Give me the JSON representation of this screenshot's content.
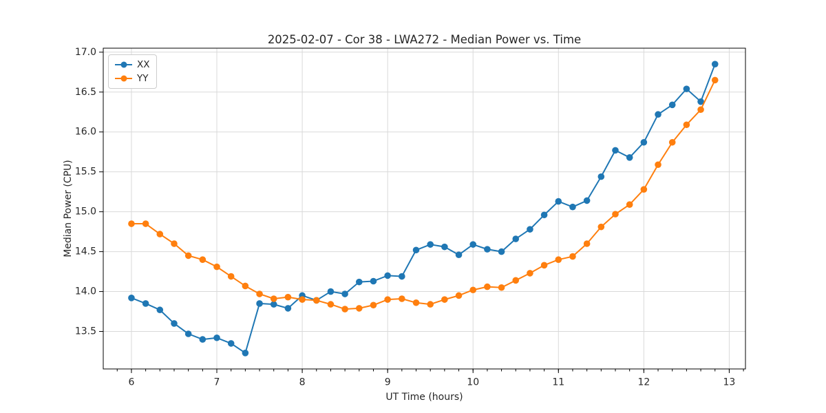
{
  "chart_data": {
    "type": "line",
    "title": "2025-02-07 - Cor 38 - LWA272 - Median Power vs. Time",
    "xlabel": "UT Time (hours)",
    "ylabel": "Median Power (CPU)",
    "xlim": [
      5.67,
      13.19
    ],
    "ylim": [
      13.03,
      17.05
    ],
    "xticks": [
      6,
      7,
      8,
      9,
      10,
      11,
      12,
      13
    ],
    "xtick_labels": [
      "6",
      "7",
      "8",
      "9",
      "10",
      "11",
      "12",
      "13"
    ],
    "x_minor_step": 0.166667,
    "yticks": [
      13.5,
      14.0,
      14.5,
      15.0,
      15.5,
      16.0,
      16.5,
      17.0
    ],
    "ytick_labels": [
      "13.5",
      "14.0",
      "14.5",
      "15.0",
      "15.5",
      "16.0",
      "16.5",
      "17.0"
    ],
    "grid": true,
    "grid_color": "#d9d9d9",
    "spine_color": "#000000",
    "legend_position": "upper-left",
    "x": [
      6.0,
      6.1667,
      6.3333,
      6.5,
      6.6667,
      6.8333,
      7.0,
      7.1667,
      7.3333,
      7.5,
      7.6667,
      7.8333,
      8.0,
      8.1667,
      8.3333,
      8.5,
      8.6667,
      8.8333,
      9.0,
      9.1667,
      9.3333,
      9.5,
      9.6667,
      9.8333,
      10.0,
      10.1667,
      10.3333,
      10.5,
      10.6667,
      10.8333,
      11.0,
      11.1667,
      11.3333,
      11.5,
      11.6667,
      11.8333,
      12.0,
      12.1667,
      12.3333,
      12.5,
      12.6667,
      12.8333
    ],
    "series": [
      {
        "name": "XX",
        "color": "#1f77b4",
        "values": [
          13.92,
          13.85,
          13.77,
          13.6,
          13.47,
          13.4,
          13.42,
          13.35,
          13.23,
          13.85,
          13.84,
          13.79,
          13.95,
          13.89,
          14.0,
          13.97,
          14.12,
          14.13,
          14.2,
          14.19,
          14.52,
          14.59,
          14.56,
          14.46,
          14.59,
          14.53,
          14.5,
          14.66,
          14.78,
          14.96,
          15.13,
          15.06,
          15.14,
          15.44,
          15.77,
          15.68,
          15.87,
          16.22,
          16.34,
          16.54,
          16.38,
          16.85
        ]
      },
      {
        "name": "YY",
        "color": "#ff7f0e",
        "values": [
          14.85,
          14.85,
          14.72,
          14.6,
          14.45,
          14.4,
          14.31,
          14.19,
          14.07,
          13.97,
          13.91,
          13.93,
          13.9,
          13.89,
          13.84,
          13.78,
          13.79,
          13.83,
          13.9,
          13.91,
          13.86,
          13.84,
          13.9,
          13.95,
          14.02,
          14.06,
          14.05,
          14.14,
          14.23,
          14.33,
          14.4,
          14.44,
          14.6,
          14.81,
          14.97,
          15.09,
          15.28,
          15.59,
          15.87,
          16.09,
          16.28,
          16.65
        ]
      }
    ]
  }
}
